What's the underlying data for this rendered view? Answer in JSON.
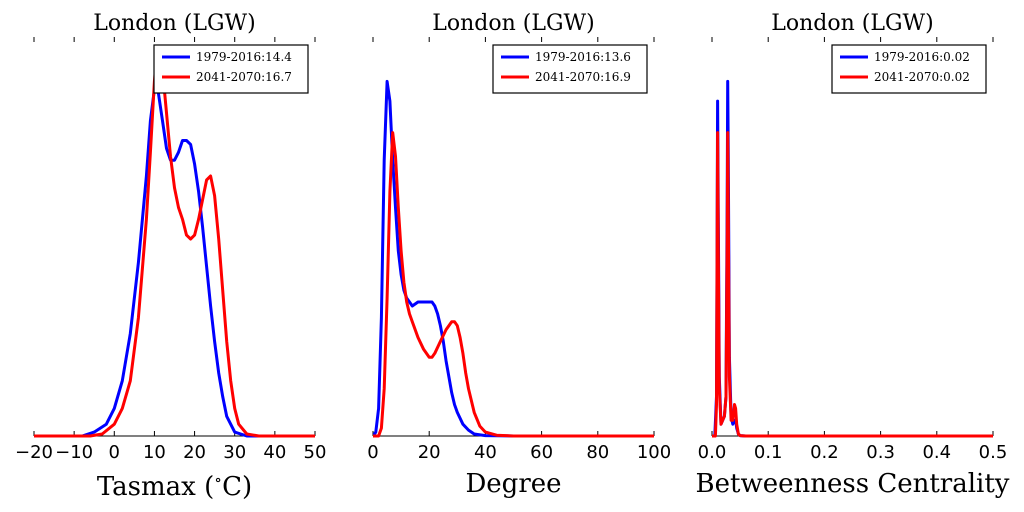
{
  "colors": {
    "series_1979": "#0000ff",
    "series_2041": "#ff0000"
  },
  "chart_data": [
    {
      "type": "line",
      "title": "London (LGW)",
      "xlabel": "Tasmax ($^\\circ$C)",
      "xlabel_main": "Tasmax (",
      "xlabel_sup": "∘",
      "xlabel_tail": "C)",
      "ylabel": "",
      "xlim": [
        -20,
        50
      ],
      "ylim": [
        0,
        1.0
      ],
      "xticks": [
        -20,
        -10,
        0,
        10,
        20,
        30,
        40,
        50
      ],
      "xtick_labels": [
        "−20",
        "−10",
        "0",
        "10",
        "20",
        "30",
        "40",
        "50"
      ],
      "legend_position": "top-right",
      "series": [
        {
          "name": "1979-2016:14.4",
          "color": "#0000ff",
          "x": [
            -20,
            -8,
            -5,
            -2,
            0,
            2,
            4,
            6,
            8,
            9,
            10,
            11,
            12,
            13,
            14,
            15,
            16,
            17,
            18,
            19,
            20,
            21,
            22,
            23,
            24,
            25,
            26,
            27,
            28,
            30,
            33,
            36,
            50
          ],
          "y": [
            0,
            0,
            0.01,
            0.03,
            0.07,
            0.14,
            0.26,
            0.44,
            0.66,
            0.8,
            0.88,
            0.87,
            0.8,
            0.73,
            0.7,
            0.7,
            0.72,
            0.75,
            0.75,
            0.74,
            0.69,
            0.62,
            0.53,
            0.43,
            0.33,
            0.24,
            0.16,
            0.1,
            0.05,
            0.01,
            0,
            0,
            0
          ]
        },
        {
          "name": "2041-2070:16.7",
          "color": "#ff0000",
          "x": [
            -20,
            -6,
            -3,
            0,
            2,
            4,
            6,
            8,
            9,
            10,
            10.5,
            11,
            12,
            13,
            14,
            15,
            16,
            17,
            18,
            19,
            20,
            21,
            22,
            23,
            24,
            25,
            26,
            27,
            28,
            29,
            30,
            31,
            33,
            36,
            50
          ],
          "y": [
            0,
            0,
            0.005,
            0.03,
            0.07,
            0.14,
            0.3,
            0.55,
            0.72,
            0.9,
            0.96,
            0.98,
            0.93,
            0.82,
            0.71,
            0.63,
            0.58,
            0.55,
            0.51,
            0.5,
            0.51,
            0.55,
            0.6,
            0.65,
            0.66,
            0.61,
            0.5,
            0.37,
            0.24,
            0.14,
            0.07,
            0.03,
            0.005,
            0,
            0
          ]
        }
      ]
    },
    {
      "type": "line",
      "title": "London (LGW)",
      "xlabel": "Degree",
      "ylabel": "",
      "xlim": [
        0,
        100
      ],
      "ylim": [
        0,
        1.0
      ],
      "xticks": [
        0,
        20,
        40,
        60,
        80,
        100
      ],
      "xtick_labels": [
        "0",
        "20",
        "40",
        "60",
        "80",
        "100"
      ],
      "legend_position": "top-right",
      "series": [
        {
          "name": "1979-2016:13.6",
          "color": "#0000ff",
          "x": [
            0,
            1,
            2,
            3,
            4,
            5,
            6,
            7,
            8,
            9,
            10,
            11,
            12,
            13,
            14,
            16,
            18,
            20,
            21,
            22,
            23,
            24,
            25,
            26,
            27,
            28,
            29,
            30,
            32,
            34,
            36,
            40,
            50,
            100
          ],
          "y": [
            0,
            0.01,
            0.07,
            0.3,
            0.7,
            0.9,
            0.85,
            0.7,
            0.58,
            0.47,
            0.41,
            0.37,
            0.35,
            0.34,
            0.33,
            0.34,
            0.34,
            0.34,
            0.34,
            0.33,
            0.31,
            0.28,
            0.24,
            0.19,
            0.15,
            0.11,
            0.08,
            0.06,
            0.03,
            0.015,
            0.005,
            0.001,
            0,
            0
          ]
        },
        {
          "name": "2041-2070:16.9",
          "color": "#ff0000",
          "x": [
            0,
            2,
            3,
            4,
            5,
            6,
            7,
            8,
            9,
            10,
            11,
            12,
            13,
            14,
            16,
            18,
            20,
            21,
            22,
            24,
            26,
            28,
            29,
            30,
            31,
            32,
            33,
            34,
            36,
            38,
            40,
            44,
            50,
            100
          ],
          "y": [
            0,
            0,
            0.02,
            0.12,
            0.35,
            0.62,
            0.77,
            0.71,
            0.58,
            0.47,
            0.39,
            0.34,
            0.31,
            0.29,
            0.25,
            0.22,
            0.2,
            0.2,
            0.21,
            0.24,
            0.27,
            0.29,
            0.29,
            0.28,
            0.25,
            0.21,
            0.16,
            0.12,
            0.06,
            0.025,
            0.01,
            0.002,
            0,
            0
          ]
        }
      ]
    },
    {
      "type": "line",
      "title": "London (LGW)",
      "xlabel": "Betweenness Centrality",
      "ylabel": "",
      "xlim": [
        0,
        0.5
      ],
      "ylim": [
        0,
        1.0
      ],
      "xticks": [
        0.0,
        0.1,
        0.2,
        0.3,
        0.4,
        0.5
      ],
      "xtick_labels": [
        "0.0",
        "0.1",
        "0.2",
        "0.3",
        "0.4",
        "0.5"
      ],
      "legend_position": "top-right",
      "series": [
        {
          "name": "1979-2016:0.02",
          "color": "#0000ff",
          "x": [
            0,
            0.005,
            0.008,
            0.009,
            0.01,
            0.011,
            0.013,
            0.016,
            0.019,
            0.022,
            0.025,
            0.027,
            0.028,
            0.029,
            0.031,
            0.034,
            0.037,
            0.04,
            0.042,
            0.044,
            0.047,
            0.05,
            0.06,
            0.08,
            0.1,
            0.5
          ],
          "y": [
            0,
            0,
            0.1,
            0.5,
            0.85,
            0.6,
            0.15,
            0.03,
            0.04,
            0.05,
            0.1,
            0.6,
            0.9,
            0.7,
            0.2,
            0.05,
            0.03,
            0.04,
            0.04,
            0.02,
            0.005,
            0.001,
            0,
            0,
            0,
            0
          ]
        },
        {
          "name": "2041-2070:0.02",
          "color": "#ff0000",
          "x": [
            0,
            0.006,
            0.008,
            0.009,
            0.01,
            0.011,
            0.013,
            0.016,
            0.019,
            0.022,
            0.025,
            0.027,
            0.028,
            0.029,
            0.031,
            0.034,
            0.037,
            0.04,
            0.042,
            0.044,
            0.047,
            0.05,
            0.06,
            0.08,
            0.1,
            0.5
          ],
          "y": [
            0,
            0,
            0.08,
            0.45,
            0.77,
            0.5,
            0.12,
            0.03,
            0.04,
            0.05,
            0.1,
            0.5,
            0.77,
            0.55,
            0.15,
            0.04,
            0.04,
            0.08,
            0.07,
            0.03,
            0.005,
            0.001,
            0,
            0,
            0,
            0
          ]
        }
      ]
    }
  ]
}
